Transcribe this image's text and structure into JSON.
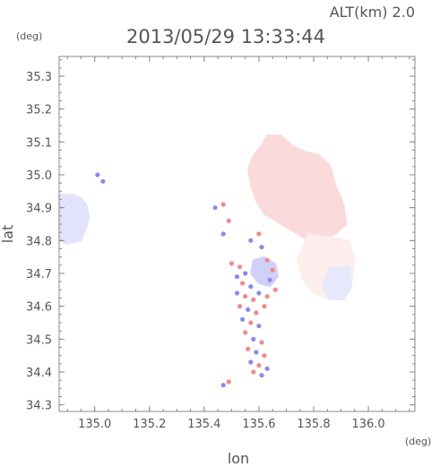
{
  "chart_data": {
    "type": "heatmap",
    "title": "2013/05/29 13:33:44",
    "subtitle": "ALT(km) 2.0",
    "xlabel": "lon",
    "ylabel": "lat",
    "x_unit": "(deg)",
    "y_unit": "(deg)",
    "xlim": [
      134.87,
      136.17
    ],
    "ylim": [
      34.28,
      35.36
    ],
    "x_ticks": [
      135.0,
      135.2,
      135.4,
      135.6,
      135.8,
      136.0
    ],
    "x_tick_labels": [
      "135.0",
      "135.2",
      "135.4",
      "135.6",
      "135.8",
      "136.0"
    ],
    "y_ticks": [
      34.3,
      34.4,
      34.5,
      34.6,
      34.7,
      34.8,
      34.9,
      35.0,
      35.1,
      35.2,
      35.3
    ],
    "y_tick_labels": [
      "34.3",
      "34.4",
      "34.5",
      "34.6",
      "34.7",
      "34.8",
      "34.9",
      "35.0",
      "35.1",
      "35.2",
      "35.3"
    ],
    "grid": false,
    "colors": {
      "positive": "#f08a8a",
      "positive_light": "#fbd6d6",
      "negative": "#8a8af0",
      "negative_light": "#dcdcfb",
      "frame": "#888888",
      "text": "#555555"
    },
    "regions": [
      {
        "name": "northwest",
        "sign": "negative",
        "intensity": 0.25,
        "polygon": [
          [
            134.87,
            34.8
          ],
          [
            134.9,
            34.79
          ],
          [
            134.95,
            34.8
          ],
          [
            134.97,
            34.84
          ],
          [
            134.98,
            34.87
          ],
          [
            134.97,
            34.91
          ],
          [
            134.95,
            34.93
          ],
          [
            134.92,
            34.94
          ],
          [
            134.87,
            34.94
          ]
        ]
      },
      {
        "name": "northeast",
        "sign": "positive",
        "intensity": 0.32,
        "polygon": [
          [
            135.63,
            35.12
          ],
          [
            135.68,
            35.12
          ],
          [
            135.72,
            35.09
          ],
          [
            135.77,
            35.07
          ],
          [
            135.82,
            35.06
          ],
          [
            135.86,
            35.03
          ],
          [
            135.88,
            34.97
          ],
          [
            135.91,
            34.91
          ],
          [
            135.92,
            34.85
          ],
          [
            135.88,
            34.82
          ],
          [
            135.83,
            34.8
          ],
          [
            135.76,
            34.81
          ],
          [
            135.7,
            34.84
          ],
          [
            135.66,
            34.86
          ],
          [
            135.62,
            34.88
          ],
          [
            135.59,
            34.92
          ],
          [
            135.57,
            34.97
          ],
          [
            135.56,
            35.02
          ],
          [
            135.58,
            35.06
          ],
          [
            135.61,
            35.09
          ]
        ]
      },
      {
        "name": "southeast-tail",
        "sign": "positive",
        "intensity": 0.15,
        "polygon": [
          [
            135.78,
            34.82
          ],
          [
            135.86,
            34.81
          ],
          [
            135.93,
            34.8
          ],
          [
            135.95,
            34.74
          ],
          [
            135.94,
            34.68
          ],
          [
            135.9,
            34.63
          ],
          [
            135.86,
            34.62
          ],
          [
            135.8,
            34.64
          ],
          [
            135.76,
            34.68
          ],
          [
            135.74,
            34.74
          ]
        ]
      },
      {
        "name": "east-blue-patch",
        "sign": "negative",
        "intensity": 0.2,
        "polygon": [
          [
            135.86,
            34.72
          ],
          [
            135.93,
            34.72
          ],
          [
            135.94,
            34.66
          ],
          [
            135.91,
            34.62
          ],
          [
            135.86,
            34.62
          ],
          [
            135.83,
            34.66
          ]
        ]
      },
      {
        "name": "center-blue",
        "sign": "negative",
        "intensity": 0.4,
        "polygon": [
          [
            135.58,
            34.74
          ],
          [
            135.62,
            34.75
          ],
          [
            135.66,
            34.73
          ],
          [
            135.67,
            34.69
          ],
          [
            135.64,
            34.66
          ],
          [
            135.6,
            34.67
          ],
          [
            135.57,
            34.7
          ]
        ]
      }
    ],
    "speckles": [
      {
        "lon": 135.53,
        "lat": 34.72,
        "sign": "positive"
      },
      {
        "lon": 135.55,
        "lat": 34.7,
        "sign": "negative"
      },
      {
        "lon": 135.54,
        "lat": 34.67,
        "sign": "positive"
      },
      {
        "lon": 135.57,
        "lat": 34.66,
        "sign": "negative"
      },
      {
        "lon": 135.52,
        "lat": 34.64,
        "sign": "negative"
      },
      {
        "lon": 135.55,
        "lat": 34.63,
        "sign": "positive"
      },
      {
        "lon": 135.58,
        "lat": 34.62,
        "sign": "positive"
      },
      {
        "lon": 135.6,
        "lat": 34.64,
        "sign": "negative"
      },
      {
        "lon": 135.53,
        "lat": 34.6,
        "sign": "positive"
      },
      {
        "lon": 135.56,
        "lat": 34.59,
        "sign": "negative"
      },
      {
        "lon": 135.59,
        "lat": 34.58,
        "sign": "positive"
      },
      {
        "lon": 135.62,
        "lat": 34.6,
        "sign": "positive"
      },
      {
        "lon": 135.54,
        "lat": 34.56,
        "sign": "negative"
      },
      {
        "lon": 135.57,
        "lat": 34.55,
        "sign": "positive"
      },
      {
        "lon": 135.6,
        "lat": 34.54,
        "sign": "negative"
      },
      {
        "lon": 135.55,
        "lat": 34.52,
        "sign": "positive"
      },
      {
        "lon": 135.58,
        "lat": 34.5,
        "sign": "negative"
      },
      {
        "lon": 135.61,
        "lat": 34.49,
        "sign": "positive"
      },
      {
        "lon": 135.56,
        "lat": 34.47,
        "sign": "positive"
      },
      {
        "lon": 135.59,
        "lat": 34.46,
        "sign": "negative"
      },
      {
        "lon": 135.62,
        "lat": 34.45,
        "sign": "positive"
      },
      {
        "lon": 135.57,
        "lat": 34.43,
        "sign": "negative"
      },
      {
        "lon": 135.6,
        "lat": 34.42,
        "sign": "positive"
      },
      {
        "lon": 135.63,
        "lat": 34.41,
        "sign": "negative"
      },
      {
        "lon": 135.58,
        "lat": 34.4,
        "sign": "positive"
      },
      {
        "lon": 135.61,
        "lat": 34.39,
        "sign": "negative"
      },
      {
        "lon": 135.47,
        "lat": 34.36,
        "sign": "negative"
      },
      {
        "lon": 135.49,
        "lat": 34.37,
        "sign": "positive"
      },
      {
        "lon": 135.63,
        "lat": 34.74,
        "sign": "positive"
      },
      {
        "lon": 135.65,
        "lat": 34.71,
        "sign": "positive"
      },
      {
        "lon": 135.64,
        "lat": 34.68,
        "sign": "negative"
      },
      {
        "lon": 135.66,
        "lat": 34.65,
        "sign": "positive"
      },
      {
        "lon": 135.63,
        "lat": 34.63,
        "sign": "positive"
      },
      {
        "lon": 135.52,
        "lat": 34.69,
        "sign": "negative"
      },
      {
        "lon": 135.5,
        "lat": 34.73,
        "sign": "positive"
      },
      {
        "lon": 135.61,
        "lat": 34.78,
        "sign": "negative"
      },
      {
        "lon": 135.6,
        "lat": 34.82,
        "sign": "positive"
      },
      {
        "lon": 135.57,
        "lat": 34.8,
        "sign": "negative"
      },
      {
        "lon": 135.47,
        "lat": 34.91,
        "sign": "positive"
      },
      {
        "lon": 135.44,
        "lat": 34.9,
        "sign": "negative"
      },
      {
        "lon": 135.49,
        "lat": 34.86,
        "sign": "positive"
      },
      {
        "lon": 135.01,
        "lat": 35.0,
        "sign": "negative"
      },
      {
        "lon": 135.03,
        "lat": 34.98,
        "sign": "negative"
      },
      {
        "lon": 135.47,
        "lat": 34.82,
        "sign": "negative"
      }
    ]
  }
}
